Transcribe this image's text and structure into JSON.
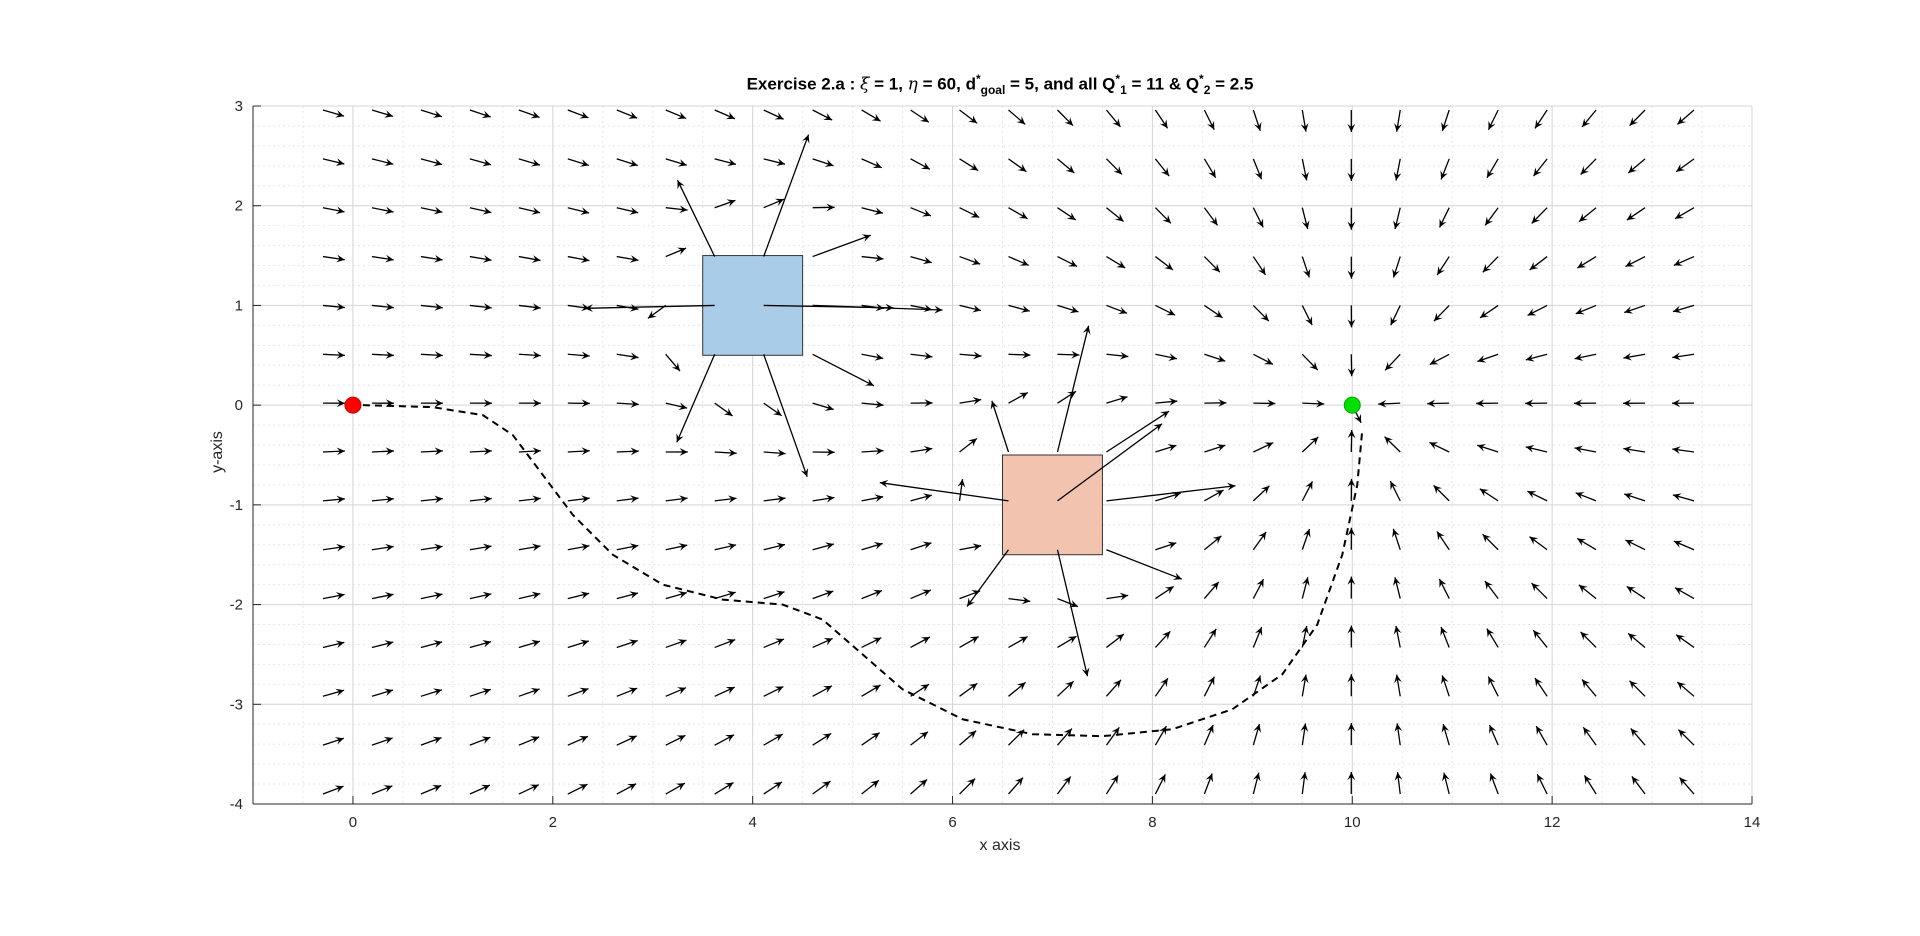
{
  "chart_data": {
    "type": "quiver",
    "title": {
      "prefix": "Exercise 2.a : ",
      "xi_symbol": "ξ",
      "xi_value": " = 1, ",
      "eta_symbol": "η",
      "eta_value": " = 60, d",
      "d_sup": "*",
      "d_sub": "goal",
      "d_value": " = 5, and all Q",
      "q1_sup": "*",
      "q1_sub": "1",
      "q1_value": " = 11 & Q",
      "q2_sup": "*",
      "q2_sub": "2",
      "q2_value": " = 2.5"
    },
    "xlabel": "x axis",
    "ylabel": "y-axis",
    "xlim": [
      -1,
      14
    ],
    "ylim": [
      -4,
      3
    ],
    "xticks": [
      0,
      2,
      4,
      6,
      8,
      10,
      12,
      14
    ],
    "yticks": [
      -4,
      -3,
      -2,
      -1,
      0,
      1,
      2,
      3
    ],
    "xtick_labels": [
      "0",
      "2",
      "4",
      "6",
      "8",
      "10",
      "12",
      "14"
    ],
    "ytick_labels": [
      "-4",
      "-3",
      "-2",
      "-1",
      "0",
      "1",
      "2",
      "3"
    ],
    "grid": true,
    "minor_grid": true,
    "start": {
      "x": 0,
      "y": 0,
      "color": "#ff0000"
    },
    "goal": {
      "x": 10,
      "y": 0,
      "color": "#00e000"
    },
    "obstacles": [
      {
        "name": "obstacle-1",
        "x": [
          3.5,
          4.5
        ],
        "y": [
          0.5,
          1.5
        ],
        "color": "#a9cde8"
      },
      {
        "name": "obstacle-2",
        "x": [
          6.5,
          7.5
        ],
        "y": [
          -1.5,
          -0.5
        ],
        "color": "#f2c4b0"
      }
    ],
    "quiver_grid": {
      "x_start": -0.3,
      "x_step": 0.49,
      "x_count": 29,
      "y_start": -3.9,
      "y_step": 0.49,
      "y_count": 15
    },
    "path": [
      [
        0.1,
        0.0
      ],
      [
        0.8,
        -0.02
      ],
      [
        1.3,
        -0.1
      ],
      [
        1.6,
        -0.3
      ],
      [
        1.9,
        -0.7
      ],
      [
        2.2,
        -1.1
      ],
      [
        2.6,
        -1.5
      ],
      [
        3.1,
        -1.8
      ],
      [
        3.7,
        -1.95
      ],
      [
        4.3,
        -2.0
      ],
      [
        4.7,
        -2.15
      ],
      [
        5.1,
        -2.5
      ],
      [
        5.5,
        -2.85
      ],
      [
        6.1,
        -3.15
      ],
      [
        6.8,
        -3.3
      ],
      [
        7.5,
        -3.32
      ],
      [
        8.2,
        -3.25
      ],
      [
        8.8,
        -3.05
      ],
      [
        9.3,
        -2.7
      ],
      [
        9.65,
        -2.2
      ],
      [
        9.9,
        -1.5
      ],
      [
        10.05,
        -0.8
      ],
      [
        10.1,
        -0.25
      ]
    ]
  }
}
